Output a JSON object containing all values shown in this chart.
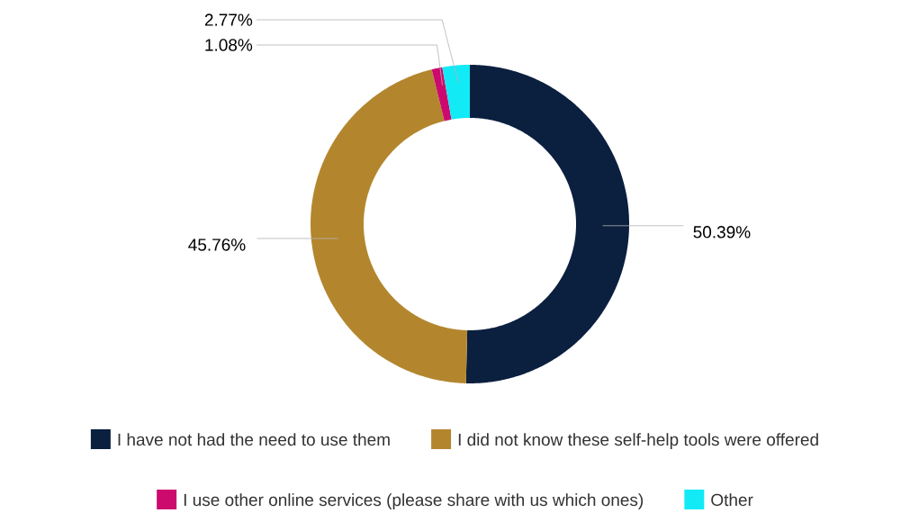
{
  "chart_data": {
    "type": "donut",
    "categories": [
      "I have not had the need to use them",
      "I did not know these self-help tools were offered",
      "I use other online services (please share with us which ones)",
      "Other"
    ],
    "values": [
      50.39,
      45.76,
      1.08,
      2.77
    ],
    "value_labels": [
      "50.39%",
      "45.76%",
      "1.08%",
      "2.77%"
    ],
    "colors": [
      "#0b1f3f",
      "#b3862e",
      "#cc0a6e",
      "#12eaf6"
    ],
    "legend": "bottom"
  }
}
